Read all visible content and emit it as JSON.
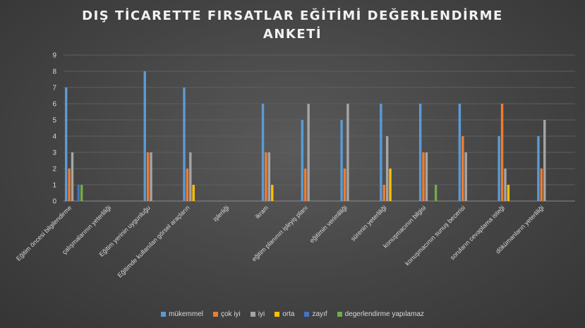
{
  "chart_data": {
    "type": "bar",
    "title_line1": "DIŞ TİCARETTE  FIRSATLAR EĞİTİMİ  DEĞERLENDİRME",
    "title_line2": "ANKETİ",
    "xlabel": "",
    "ylabel": "",
    "ylim": [
      0,
      9
    ],
    "yticks": [
      "0",
      "1",
      "2",
      "3",
      "4",
      "5",
      "6",
      "7",
      "8",
      "9"
    ],
    "grid": true,
    "legend_position": "bottom",
    "categories": [
      "Eğitim öncesi bilgilendirme",
      "çalışmalarının yeterliliği",
      "Eğitim yerinin uygunluğu",
      "Eğitimde kullanılan görsel araçların",
      "işlerliği",
      "ikram",
      "eğitim planının işleyiş planı",
      "eğitimin verimliliği",
      "sürenin yeterliliği",
      "konuşmacının bilgisi",
      "konuşmacının sunuş becerisi",
      "soruların cevaplama isteği",
      "dökümanların yeterliliği"
    ],
    "series": [
      {
        "name": "mükemmel",
        "color": "#5b9bd5",
        "values": [
          7,
          null,
          8,
          7,
          null,
          6,
          5,
          5,
          6,
          6,
          6,
          4,
          4
        ]
      },
      {
        "name": "çok iyi",
        "color": "#ed7d31",
        "values": [
          2,
          null,
          3,
          2,
          null,
          3,
          2,
          2,
          1,
          3,
          4,
          6,
          2
        ]
      },
      {
        "name": "iyi",
        "color": "#a5a5a5",
        "values": [
          3,
          null,
          3,
          3,
          null,
          3,
          6,
          6,
          4,
          3,
          3,
          2,
          5
        ]
      },
      {
        "name": "orta",
        "color": "#ffc000",
        "values": [
          null,
          null,
          null,
          1,
          null,
          1,
          null,
          null,
          2,
          null,
          null,
          1,
          null
        ]
      },
      {
        "name": "zayıf",
        "color": "#4472c4",
        "values": [
          1,
          null,
          null,
          null,
          null,
          null,
          null,
          null,
          null,
          null,
          null,
          null,
          null
        ]
      },
      {
        "name": "degerlendirme yapılamaz",
        "color": "#70ad47",
        "values": [
          1,
          null,
          null,
          null,
          null,
          null,
          null,
          null,
          null,
          1,
          null,
          null,
          null
        ]
      }
    ]
  }
}
